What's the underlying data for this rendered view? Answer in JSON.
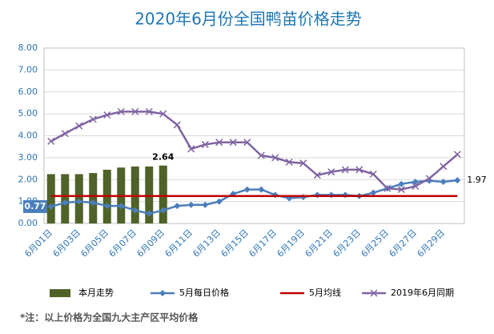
{
  "chart_data": {
    "type": "bar-line",
    "title": "2020年6月份全国鸭苗价格走势",
    "categories": [
      "6月01日",
      null,
      "6月03日",
      null,
      "6月05日",
      null,
      "6月07日",
      null,
      "6月09日",
      null,
      "6月11日",
      null,
      "6月13日",
      null,
      "6月15日",
      null,
      "6月17日",
      null,
      "6月19日",
      null,
      "6月21日",
      null,
      "6月23日",
      null,
      "6月25日",
      null,
      "6月27日",
      null,
      "6月29日",
      null
    ],
    "ylim": [
      0,
      8
    ],
    "yticks": [
      {
        "value": 0,
        "label": "0.00"
      },
      {
        "value": 1,
        "label": "1.00"
      },
      {
        "value": 2,
        "label": "2.00"
      },
      {
        "value": 3,
        "label": "3.00"
      },
      {
        "value": 4,
        "label": "4.00"
      },
      {
        "value": 5,
        "label": "5.00"
      },
      {
        "value": 6,
        "label": "6.00"
      },
      {
        "value": 7,
        "label": "7.00"
      },
      {
        "value": 8,
        "label": "8.00"
      }
    ],
    "grid": true,
    "legend": "bottom",
    "series": [
      {
        "name": "本月走势",
        "kind": "bar",
        "color": "#4f6228",
        "values": [
          2.25,
          2.25,
          2.25,
          2.3,
          2.45,
          2.55,
          2.6,
          2.6,
          2.64,
          null,
          null,
          null,
          null,
          null,
          null,
          null,
          null,
          null,
          null,
          null,
          null,
          null,
          null,
          null,
          null,
          null,
          null,
          null,
          null,
          null
        ]
      },
      {
        "name": "5月每日价格",
        "kind": "line",
        "marker": "diamond",
        "color": "#4a7ebb",
        "values": [
          0.77,
          0.95,
          1.0,
          0.95,
          0.8,
          0.8,
          0.6,
          0.45,
          0.6,
          0.8,
          0.85,
          0.85,
          1.0,
          1.35,
          1.55,
          1.55,
          1.3,
          1.15,
          1.2,
          1.3,
          1.3,
          1.3,
          1.25,
          1.4,
          1.6,
          1.8,
          1.9,
          1.95,
          1.9,
          1.97
        ]
      },
      {
        "name": "5月均线",
        "kind": "line",
        "marker": "none",
        "color": "#c00000",
        "values": [
          1.25,
          1.25,
          1.25,
          1.25,
          1.25,
          1.25,
          1.25,
          1.25,
          1.25,
          1.25,
          1.25,
          1.25,
          1.25,
          1.25,
          1.25,
          1.25,
          1.25,
          1.25,
          1.25,
          1.25,
          1.25,
          1.25,
          1.25,
          1.25,
          1.25,
          1.25,
          1.25,
          1.25,
          1.25,
          1.25
        ]
      },
      {
        "name": "2019年6月同期",
        "kind": "line",
        "marker": "x",
        "color": "#8064a2",
        "values": [
          3.75,
          4.1,
          4.45,
          4.75,
          4.95,
          5.1,
          5.1,
          5.1,
          5.0,
          4.5,
          3.4,
          3.6,
          3.7,
          3.7,
          3.7,
          3.1,
          3.0,
          2.8,
          2.75,
          2.2,
          2.35,
          2.45,
          2.45,
          2.25,
          1.6,
          1.55,
          1.7,
          2.05,
          2.6,
          3.15
        ]
      }
    ],
    "note": "*注：以上价格为全国九大主产区平均价格"
  }
}
